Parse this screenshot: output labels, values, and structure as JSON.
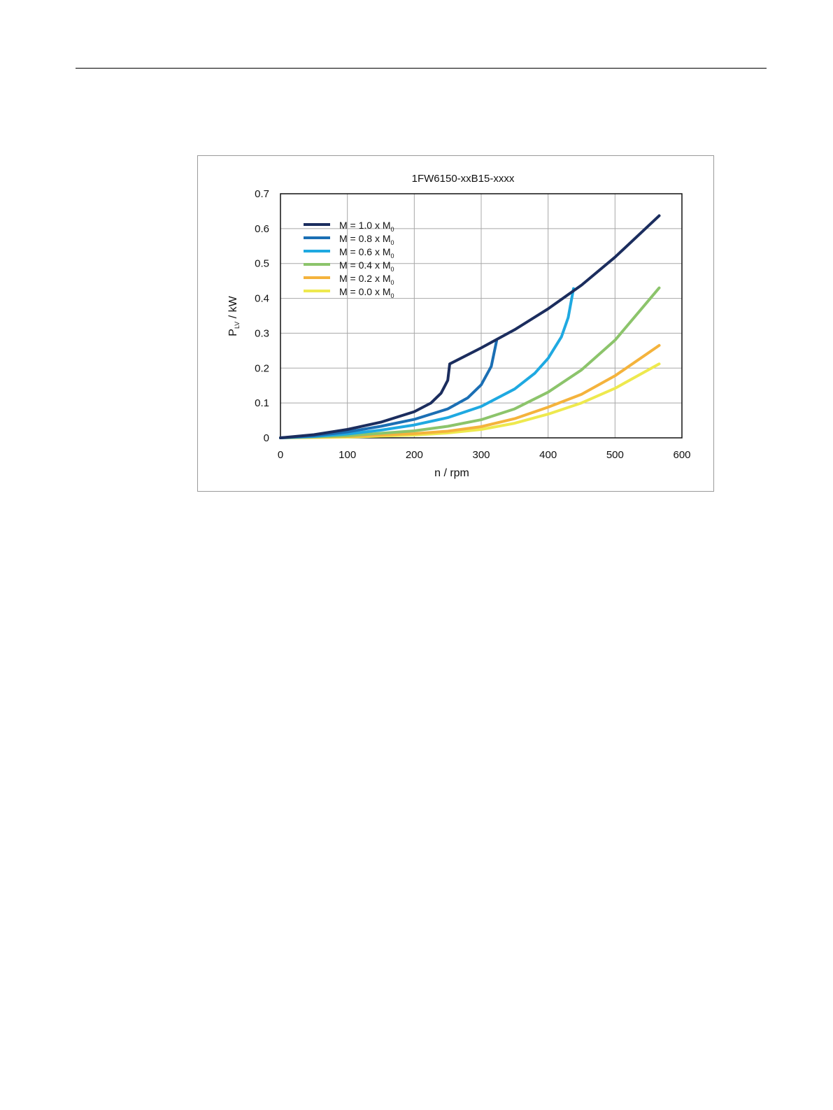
{
  "chart_data": {
    "type": "line",
    "title": "1FW6150-xxB15-xxxx",
    "xlabel": "n / rpm",
    "ylabel": {
      "main": "P",
      "sub": "LV",
      "rest": " / kW"
    },
    "xlim": [
      0,
      600
    ],
    "ylim": [
      0,
      0.7
    ],
    "xticks": [
      0,
      100,
      200,
      300,
      400,
      500,
      600
    ],
    "xtick_labels": [
      "0",
      "100",
      "200",
      "300",
      "400",
      "500",
      "600"
    ],
    "yticks": [
      0,
      0.1,
      0.2,
      0.3,
      0.4,
      0.5,
      0.6,
      0.7
    ],
    "ytick_labels": [
      "0",
      "0.1",
      "0.2",
      "0.3",
      "0.4",
      "0.5",
      "0.6",
      "0.7"
    ],
    "grid": true,
    "legend_position": "top-left",
    "series": [
      {
        "name": "M = 1.0 x M",
        "sub": "0",
        "color": "#1b2d5e",
        "x": [
          0,
          50,
          100,
          150,
          200,
          225,
          240,
          250,
          253,
          300,
          350,
          400,
          450,
          500,
          566
        ],
        "y": [
          0,
          0.009,
          0.024,
          0.045,
          0.075,
          0.1,
          0.128,
          0.165,
          0.212,
          0.258,
          0.31,
          0.37,
          0.438,
          0.518,
          0.637
        ]
      },
      {
        "name": "M = 0.8 x M",
        "sub": "0",
        "color": "#1b6fb4",
        "x": [
          0,
          50,
          100,
          150,
          200,
          250,
          280,
          300,
          315,
          323
        ],
        "y": [
          0,
          0.006,
          0.017,
          0.033,
          0.053,
          0.083,
          0.115,
          0.152,
          0.205,
          0.278
        ]
      },
      {
        "name": "M = 0.6 x M",
        "sub": "0",
        "color": "#1fa9e1",
        "x": [
          0,
          50,
          100,
          150,
          200,
          250,
          300,
          350,
          380,
          400,
          420,
          430,
          438
        ],
        "y": [
          0,
          0.004,
          0.011,
          0.022,
          0.037,
          0.058,
          0.09,
          0.14,
          0.185,
          0.228,
          0.29,
          0.345,
          0.428
        ]
      },
      {
        "name": "M = 0.4 x M",
        "sub": "0",
        "color": "#8cc46b",
        "x": [
          0,
          100,
          200,
          250,
          300,
          350,
          400,
          450,
          500,
          566
        ],
        "y": [
          0,
          0.006,
          0.02,
          0.033,
          0.052,
          0.083,
          0.131,
          0.195,
          0.28,
          0.43
        ]
      },
      {
        "name": "M = 0.2 x M",
        "sub": "0",
        "color": "#f4b33c",
        "x": [
          0,
          100,
          200,
          250,
          300,
          350,
          400,
          450,
          500,
          566
        ],
        "y": [
          0,
          0.004,
          0.012,
          0.019,
          0.032,
          0.055,
          0.088,
          0.125,
          0.178,
          0.265
        ]
      },
      {
        "name": "M = 0.0 x M",
        "sub": "0",
        "color": "#eee94e",
        "x": [
          0,
          100,
          200,
          250,
          300,
          350,
          400,
          450,
          500,
          566
        ],
        "y": [
          0,
          0.002,
          0.008,
          0.014,
          0.024,
          0.042,
          0.068,
          0.1,
          0.142,
          0.212
        ]
      }
    ]
  }
}
